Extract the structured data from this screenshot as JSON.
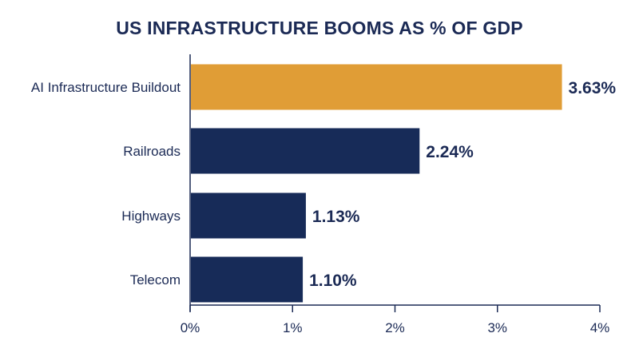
{
  "chart_data": {
    "type": "bar",
    "orientation": "horizontal",
    "title": "US INFRASTRUCTURE BOOMS AS % OF GDP",
    "xlabel": "",
    "ylabel": "",
    "categories": [
      "AI Infrastructure Buildout",
      "Railroads",
      "Highways",
      "Telecom"
    ],
    "values": [
      3.63,
      2.24,
      1.13,
      1.1
    ],
    "data_labels": [
      "3.63%",
      "2.24%",
      "1.13%",
      "1.10%"
    ],
    "bar_colors": [
      "#e09d36",
      "#172b58",
      "#172b58",
      "#172b58"
    ],
    "xlim": [
      0,
      4
    ],
    "xticks": [
      0,
      1,
      2,
      3,
      4
    ],
    "xtick_labels": [
      "0%",
      "1%",
      "2%",
      "3%",
      "4%"
    ],
    "grid": false,
    "legend": "none"
  },
  "colors": {
    "title": "#1b2a55",
    "axis": "#1b2a55",
    "label": "#1b2a55",
    "highlight_bar": "#e09d36",
    "bar": "#172b58"
  }
}
